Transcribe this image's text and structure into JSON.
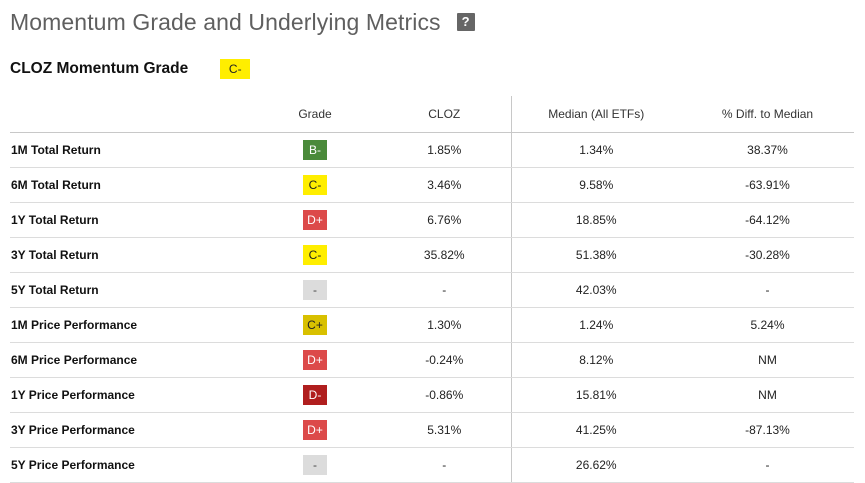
{
  "page": {
    "title": "Momentum Grade and Underlying Metrics",
    "help": "?"
  },
  "summary": {
    "title": "CLOZ Momentum Grade",
    "grade": "C-",
    "grade_color": "#ffee00"
  },
  "table": {
    "headers": [
      "",
      "Grade",
      "CLOZ",
      "Median (All ETFs)",
      "% Diff. to Median"
    ],
    "rows": [
      {
        "metric": "1M Total Return",
        "grade": "B-",
        "grade_bg": "#4a8a3a",
        "grade_fg": "#ffffff",
        "cloz": "1.85%",
        "median": "1.34%",
        "diff": "38.37%"
      },
      {
        "metric": "6M Total Return",
        "grade": "C-",
        "grade_bg": "#ffee00",
        "grade_fg": "#222222",
        "cloz": "3.46%",
        "median": "9.58%",
        "diff": "-63.91%"
      },
      {
        "metric": "1Y Total Return",
        "grade": "D+",
        "grade_bg": "#dc4a4a",
        "grade_fg": "#ffffff",
        "cloz": "6.76%",
        "median": "18.85%",
        "diff": "-64.12%"
      },
      {
        "metric": "3Y Total Return",
        "grade": "C-",
        "grade_bg": "#ffee00",
        "grade_fg": "#222222",
        "cloz": "35.82%",
        "median": "51.38%",
        "diff": "-30.28%"
      },
      {
        "metric": "5Y Total Return",
        "grade": "-",
        "grade_bg": "#dcdcdc",
        "grade_fg": "#444444",
        "cloz": "-",
        "median": "42.03%",
        "diff": "-"
      },
      {
        "metric": "1M Price Performance",
        "grade": "C+",
        "grade_bg": "#d8c000",
        "grade_fg": "#222222",
        "cloz": "1.30%",
        "median": "1.24%",
        "diff": "5.24%"
      },
      {
        "metric": "6M Price Performance",
        "grade": "D+",
        "grade_bg": "#dc4a4a",
        "grade_fg": "#ffffff",
        "cloz": "-0.24%",
        "median": "8.12%",
        "diff": "NM"
      },
      {
        "metric": "1Y Price Performance",
        "grade": "D-",
        "grade_bg": "#b01e1e",
        "grade_fg": "#ffffff",
        "cloz": "-0.86%",
        "median": "15.81%",
        "diff": "NM"
      },
      {
        "metric": "3Y Price Performance",
        "grade": "D+",
        "grade_bg": "#dc4a4a",
        "grade_fg": "#ffffff",
        "cloz": "5.31%",
        "median": "41.25%",
        "diff": "-87.13%"
      },
      {
        "metric": "5Y Price Performance",
        "grade": "-",
        "grade_bg": "#dcdcdc",
        "grade_fg": "#444444",
        "cloz": "-",
        "median": "26.62%",
        "diff": "-"
      }
    ]
  }
}
